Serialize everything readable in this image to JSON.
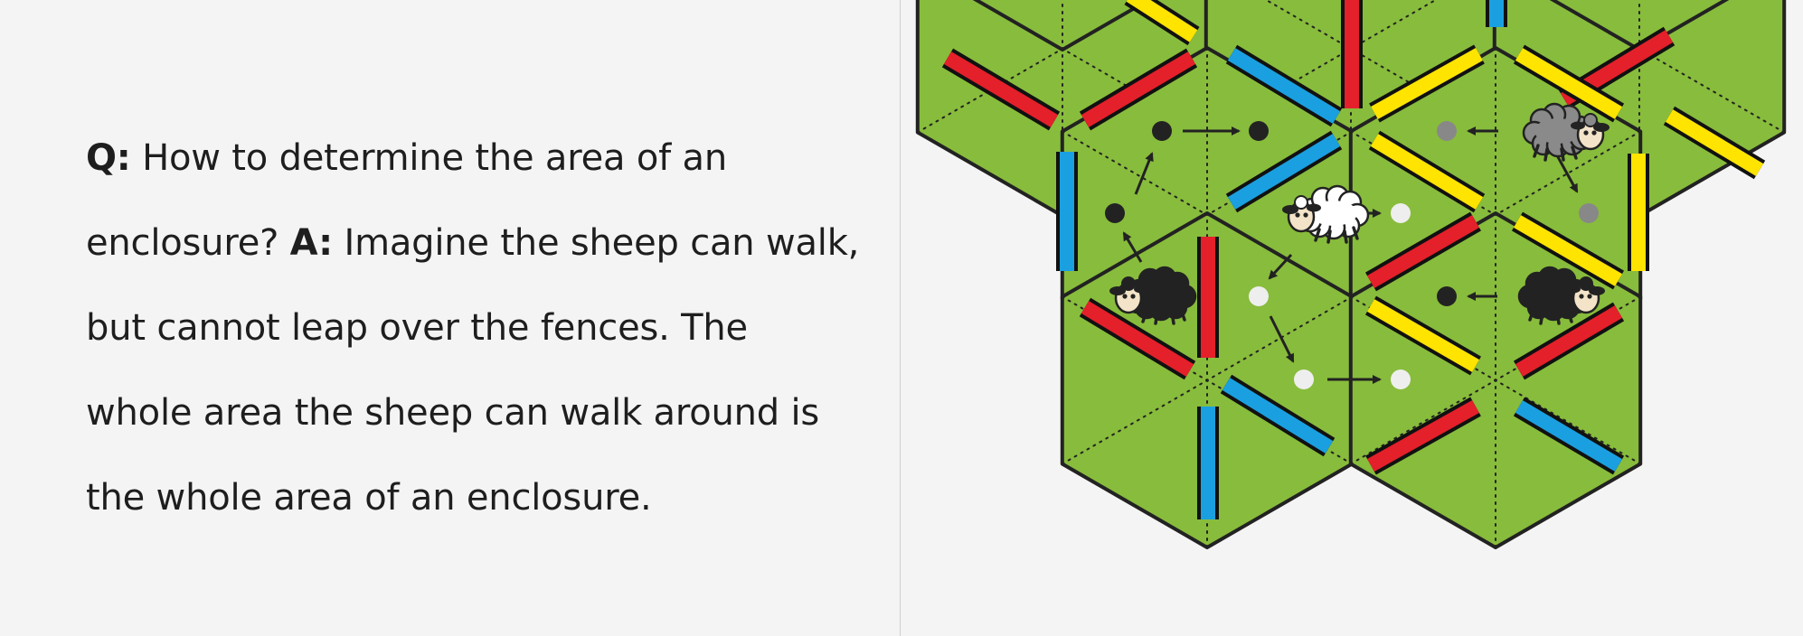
{
  "faq": {
    "question_label": "Q:",
    "question_text": " How to determine the area of an enclosure? ",
    "answer_label": "A:",
    "answer_text": " Imagine the sheep can walk, but cannot leap over the fences. The whole area the sheep can walk around is the whole area of an enclosure."
  },
  "colors": {
    "background": "#f4f4f4",
    "tile_green": "#88bc3c",
    "tile_outline": "#222222",
    "fence_red": "#e4202a",
    "fence_yellow": "#ffe400",
    "fence_blue": "#1aa0e0",
    "sheep_white": "#ffffff",
    "sheep_gray": "#8a8a8a",
    "sheep_black": "#222222"
  },
  "board": {
    "tile_count": 6,
    "fences": [
      {
        "color": "yellow"
      },
      {
        "color": "red"
      },
      {
        "color": "red"
      },
      {
        "color": "red"
      },
      {
        "color": "blue"
      },
      {
        "color": "blue"
      },
      {
        "color": "blue"
      },
      {
        "color": "yellow"
      },
      {
        "color": "yellow"
      },
      {
        "color": "blue"
      },
      {
        "color": "red"
      },
      {
        "color": "yellow"
      },
      {
        "color": "yellow"
      },
      {
        "color": "yellow"
      },
      {
        "color": "red"
      },
      {
        "color": "red"
      },
      {
        "color": "red"
      },
      {
        "color": "yellow"
      },
      {
        "color": "blue"
      },
      {
        "color": "blue"
      },
      {
        "color": "yellow"
      },
      {
        "color": "red"
      },
      {
        "color": "red"
      },
      {
        "color": "blue"
      }
    ],
    "sheep": [
      {
        "color": "white"
      },
      {
        "color": "gray"
      },
      {
        "color": "black"
      },
      {
        "color": "black"
      }
    ]
  }
}
